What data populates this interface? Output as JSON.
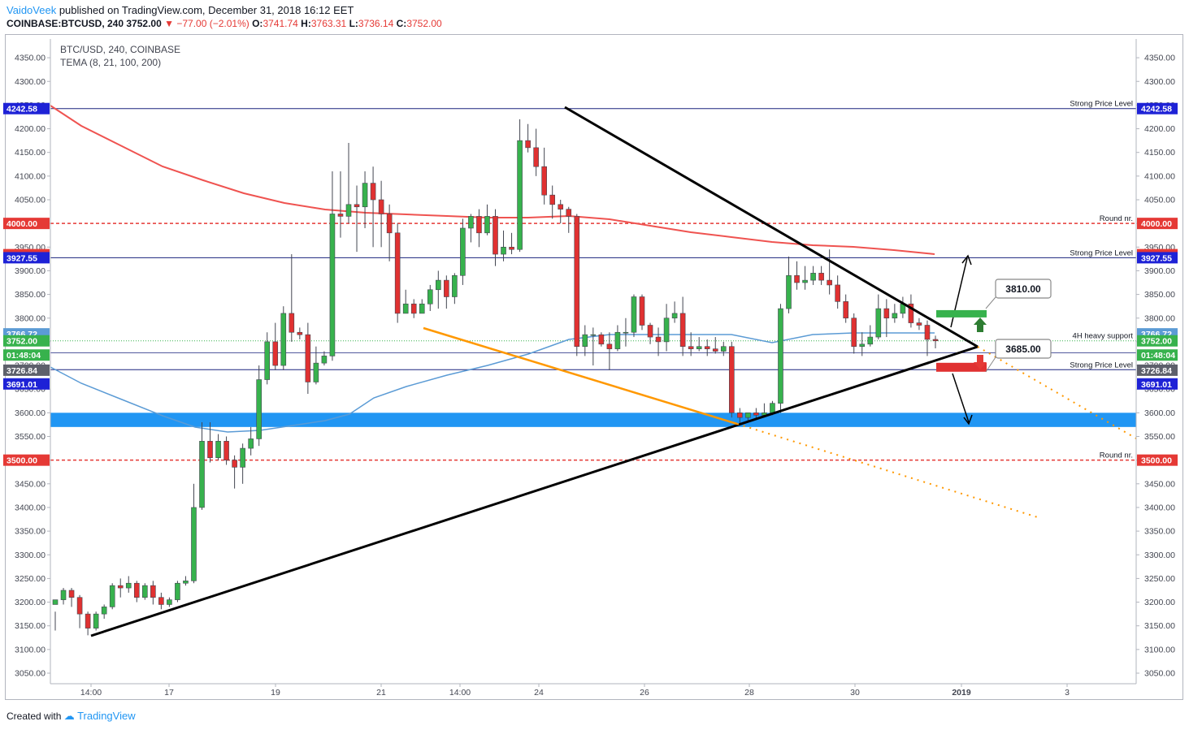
{
  "header": {
    "author": "VaidoVeek",
    "published": "published on TradingView.com, December 31, 2018 16:12 EET",
    "symbol": "COINBASE:BTCUSD, 240",
    "last": "3752.00",
    "change": "−77.00 (−2.01%)",
    "o_label": "O:",
    "o": "3741.74",
    "h_label": "H:",
    "h": "3763.31",
    "l_label": "L:",
    "l": "3736.14",
    "c_label": "C:",
    "c": "3752.00"
  },
  "legend": {
    "title": "BTC/USD, 240, COINBASE",
    "indicator": "TEMA (8, 21, 100, 200)"
  },
  "footer": {
    "created_with": "Created with",
    "brand": "TradingView"
  },
  "colors": {
    "up": "#26a69a",
    "up_fill": "#37b24d",
    "down": "#e03131",
    "tema_red": "#ef5350",
    "tema_blue": "#5b9bd5",
    "zone": "#2196f3",
    "orange": "#ff9800",
    "level_blue": "#1a237e",
    "round_red": "#e53935"
  },
  "chart_data": {
    "type": "candlestick",
    "y_range": [
      3025,
      4375
    ],
    "y_ticks": [
      "3050.00",
      "3100.00",
      "3150.00",
      "3200.00",
      "3250.00",
      "3300.00",
      "3350.00",
      "3400.00",
      "3450.00",
      "3500.00",
      "3550.00",
      "3600.00",
      "3650.00",
      "3700.00",
      "3750.00",
      "3800.00",
      "3850.00",
      "3900.00",
      "3950.00",
      "4000.00",
      "4050.00",
      "4100.00",
      "4150.00",
      "4200.00",
      "4250.00",
      "4300.00",
      "4350.00"
    ],
    "x_ticks": [
      "14:00",
      "17",
      "19",
      "21",
      "14:00",
      "24",
      "26",
      "28",
      "30",
      "2019",
      "3"
    ],
    "price_tags": [
      {
        "label": "4242.58",
        "value": 4242.58,
        "color": "#1e22d6"
      },
      {
        "label": "4000.00",
        "value": 4000,
        "color": "#e53935"
      },
      {
        "label": "3934.01",
        "value": 3934.01,
        "color": "#e53935"
      },
      {
        "label": "3927.55",
        "value": 3927.55,
        "color": "#1e22d6"
      },
      {
        "label": "3766.72",
        "value": 3766.72,
        "color": "#5b9bd5"
      },
      {
        "label": "3752.00",
        "value": 3752,
        "color": "#37b24d"
      },
      {
        "label": "01:48:04",
        "value": 3722,
        "color": "#37b24d"
      },
      {
        "label": "3726.84",
        "value": 3690,
        "color": "#5d606b"
      },
      {
        "label": "3691.01",
        "value": 3661,
        "color": "#1e22d6"
      },
      {
        "label": "3500.00",
        "value": 3500,
        "color": "#e53935"
      }
    ],
    "levels": [
      {
        "label": "Strong Price Level",
        "value": 4242.58,
        "style": "solid"
      },
      {
        "label": "Round nr.",
        "value": 4000,
        "style": "dashed-red"
      },
      {
        "label": "Strong Price Level",
        "value": 3927.55,
        "style": "solid"
      },
      {
        "label": "4H heavy support",
        "value": 3752,
        "style": "dotted"
      },
      {
        "label": "",
        "value": 3726.84,
        "style": "solid-thin"
      },
      {
        "label": "Strong Price Level",
        "value": 3691.01,
        "style": "solid"
      },
      {
        "label": "Round nr.",
        "value": 3500,
        "style": "dashed-red"
      }
    ],
    "callouts": [
      {
        "label": "3810.00",
        "value": 3810
      },
      {
        "label": "3685.00",
        "value": 3685
      }
    ],
    "support_zone": [
      3570,
      3600
    ],
    "candles": [
      [
        3195,
        3205,
        3180,
        3140
      ],
      [
        3205,
        3225,
        3230,
        3195
      ],
      [
        3225,
        3210,
        3230,
        3190
      ],
      [
        3210,
        3175,
        3215,
        3145
      ],
      [
        3175,
        3145,
        3180,
        3130
      ],
      [
        3145,
        3175,
        3180,
        3140
      ],
      [
        3175,
        3190,
        3195,
        3165
      ],
      [
        3190,
        3235,
        3240,
        3185
      ],
      [
        3235,
        3230,
        3250,
        3210
      ],
      [
        3230,
        3240,
        3255,
        3220
      ],
      [
        3240,
        3210,
        3245,
        3200
      ],
      [
        3210,
        3235,
        3240,
        3205
      ],
      [
        3235,
        3210,
        3245,
        3195
      ],
      [
        3210,
        3195,
        3220,
        3185
      ],
      [
        3195,
        3205,
        3210,
        3190
      ],
      [
        3205,
        3240,
        3245,
        3200
      ],
      [
        3240,
        3245,
        3255,
        3235
      ],
      [
        3245,
        3400,
        3450,
        3240
      ],
      [
        3400,
        3540,
        3580,
        3395
      ],
      [
        3540,
        3505,
        3580,
        3495
      ],
      [
        3505,
        3540,
        3555,
        3500
      ],
      [
        3540,
        3500,
        3550,
        3490
      ],
      [
        3500,
        3485,
        3510,
        3440
      ],
      [
        3485,
        3525,
        3535,
        3450
      ],
      [
        3525,
        3545,
        3570,
        3510
      ],
      [
        3545,
        3670,
        3700,
        3530
      ],
      [
        3670,
        3750,
        3770,
        3660
      ],
      [
        3750,
        3700,
        3790,
        3690
      ],
      [
        3700,
        3810,
        3825,
        3690
      ],
      [
        3810,
        3770,
        3935,
        3750
      ],
      [
        3770,
        3765,
        3780,
        3755
      ],
      [
        3765,
        3665,
        3790,
        3640
      ],
      [
        3665,
        3705,
        3740,
        3660
      ],
      [
        3705,
        3720,
        3730,
        3700
      ],
      [
        3720,
        4020,
        4110,
        3710
      ],
      [
        4020,
        4015,
        4110,
        3970
      ],
      [
        4015,
        4040,
        4170,
        4000
      ],
      [
        4040,
        4035,
        4080,
        3940
      ],
      [
        4035,
        4085,
        4110,
        3990
      ],
      [
        4085,
        4050,
        4120,
        3950
      ],
      [
        4050,
        4020,
        4090,
        3950
      ],
      [
        4020,
        3980,
        4040,
        3920
      ],
      [
        3980,
        3810,
        4000,
        3790
      ],
      [
        3810,
        3830,
        3860,
        3810
      ],
      [
        3830,
        3810,
        3840,
        3800
      ],
      [
        3810,
        3830,
        3840,
        3810
      ],
      [
        3830,
        3860,
        3870,
        3815
      ],
      [
        3860,
        3880,
        3900,
        3820
      ],
      [
        3880,
        3845,
        3890,
        3820
      ],
      [
        3845,
        3890,
        3895,
        3830
      ],
      [
        3890,
        3990,
        4010,
        3870
      ],
      [
        3990,
        4015,
        4020,
        3960
      ],
      [
        4015,
        3980,
        4030,
        3950
      ],
      [
        3980,
        4015,
        4040,
        3975
      ],
      [
        4015,
        3935,
        4030,
        3910
      ],
      [
        3935,
        3950,
        3985,
        3920
      ],
      [
        3950,
        3945,
        3980,
        3935
      ],
      [
        3945,
        4175,
        4220,
        3940
      ],
      [
        4175,
        4160,
        4210,
        4150
      ],
      [
        4160,
        4120,
        4200,
        4100
      ],
      [
        4120,
        4060,
        4160,
        4040
      ],
      [
        4060,
        4040,
        4080,
        4010
      ],
      [
        4040,
        4030,
        4050,
        4000
      ],
      [
        4030,
        4015,
        4035,
        3980
      ],
      [
        4015,
        3740,
        4020,
        3720
      ],
      [
        3740,
        3765,
        3785,
        3720
      ],
      [
        3765,
        3765,
        3780,
        3700
      ],
      [
        3765,
        3745,
        3770,
        3740
      ],
      [
        3745,
        3735,
        3770,
        3690
      ],
      [
        3735,
        3770,
        3785,
        3730
      ],
      [
        3770,
        3770,
        3800,
        3740
      ],
      [
        3770,
        3845,
        3850,
        3760
      ],
      [
        3845,
        3785,
        3850,
        3775
      ],
      [
        3785,
        3760,
        3790,
        3745
      ],
      [
        3760,
        3750,
        3780,
        3720
      ],
      [
        3750,
        3800,
        3830,
        3730
      ],
      [
        3800,
        3810,
        3835,
        3790
      ],
      [
        3810,
        3740,
        3845,
        3720
      ],
      [
        3740,
        3735,
        3770,
        3720
      ],
      [
        3735,
        3740,
        3760,
        3730
      ],
      [
        3740,
        3735,
        3755,
        3720
      ],
      [
        3735,
        3730,
        3760,
        3725
      ],
      [
        3730,
        3740,
        3750,
        3720
      ],
      [
        3740,
        3600,
        3750,
        3590
      ],
      [
        3600,
        3590,
        3610,
        3575
      ],
      [
        3590,
        3600,
        3600,
        3580
      ],
      [
        3600,
        3595,
        3610,
        3585
      ],
      [
        3595,
        3600,
        3620,
        3590
      ],
      [
        3600,
        3620,
        3625,
        3595
      ],
      [
        3620,
        3820,
        3830,
        3600
      ],
      [
        3820,
        3890,
        3930,
        3810
      ],
      [
        3890,
        3875,
        3920,
        3860
      ],
      [
        3875,
        3880,
        3910,
        3860
      ],
      [
        3880,
        3895,
        3910,
        3870
      ],
      [
        3895,
        3880,
        3910,
        3870
      ],
      [
        3880,
        3870,
        3945,
        3850
      ],
      [
        3870,
        3835,
        3890,
        3820
      ],
      [
        3835,
        3800,
        3850,
        3790
      ],
      [
        3800,
        3740,
        3810,
        3725
      ],
      [
        3740,
        3745,
        3770,
        3720
      ],
      [
        3745,
        3760,
        3785,
        3740
      ],
      [
        3760,
        3820,
        3850,
        3755
      ],
      [
        3820,
        3800,
        3840,
        3760
      ],
      [
        3800,
        3810,
        3830,
        3790
      ],
      [
        3810,
        3830,
        3845,
        3800
      ],
      [
        3830,
        3790,
        3850,
        3780
      ],
      [
        3790,
        3785,
        3800,
        3775
      ],
      [
        3785,
        3755,
        3795,
        3720
      ],
      [
        3755,
        3752,
        3763,
        3736
      ]
    ]
  }
}
